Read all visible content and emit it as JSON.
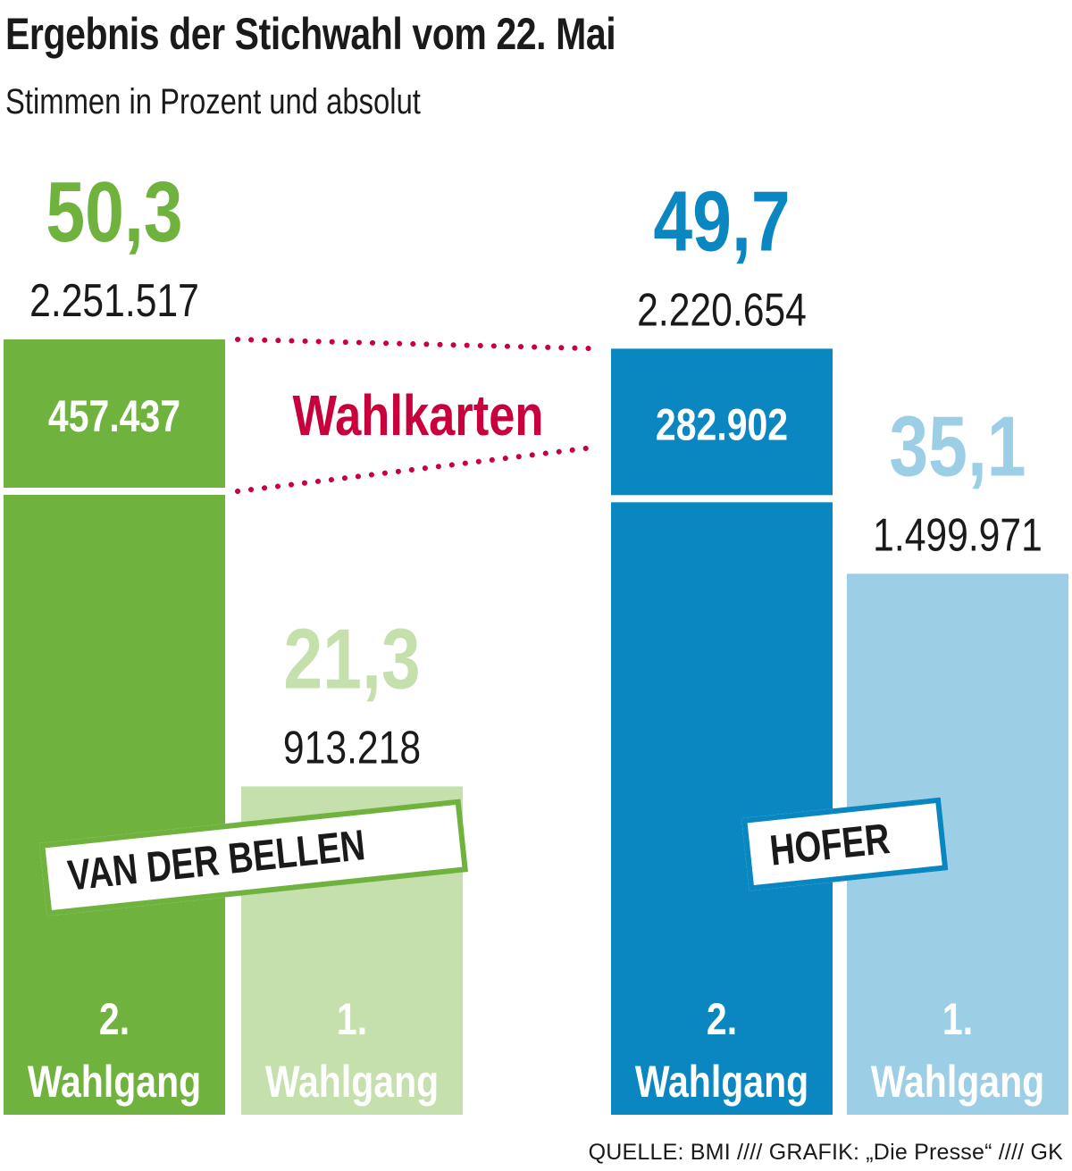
{
  "title": "Ergebnis der Stichwahl vom 22. Mai",
  "subtitle": "Stimmen in Prozent und absolut",
  "source": "QUELLE: BMI  ////  GRAFIK: „Die Presse“  ////  GK",
  "colors": {
    "vdb_dark": "#6fb23e",
    "vdb_light": "#c5e0ac",
    "hofer_dark": "#0a87c1",
    "hofer_light": "#9ccfe6",
    "wahlkarten": "#c8003c"
  },
  "chart_data": {
    "type": "bar",
    "ylim": [
      0,
      50.3
    ],
    "title": "Ergebnis der Stichwahl vom 22. Mai",
    "subtitle": "Stimmen in Prozent und absolut",
    "wahlkarten_label": "Wahlkarten",
    "candidates": [
      {
        "name": "VAN DER BELLEN",
        "bars": [
          {
            "round": "2. Wahlgang",
            "round_num": "2.",
            "round_word": "Wahlgang",
            "percent": 50.3,
            "percent_label": "50,3",
            "votes": "2.251.517",
            "wahlkarten_votes": "457.437",
            "shade": "dark"
          },
          {
            "round": "1. Wahlgang",
            "round_num": "1.",
            "round_word": "Wahlgang",
            "percent": 21.3,
            "percent_label": "21,3",
            "votes": "913.218",
            "shade": "light"
          }
        ]
      },
      {
        "name": "HOFER",
        "bars": [
          {
            "round": "2. Wahlgang",
            "round_num": "2.",
            "round_word": "Wahlgang",
            "percent": 49.7,
            "percent_label": "49,7",
            "votes": "2.220.654",
            "wahlkarten_votes": "282.902",
            "shade": "dark"
          },
          {
            "round": "1. Wahlgang",
            "round_num": "1.",
            "round_word": "Wahlgang",
            "percent": 35.1,
            "percent_label": "35,1",
            "votes": "1.499.971",
            "shade": "light"
          }
        ]
      }
    ]
  }
}
